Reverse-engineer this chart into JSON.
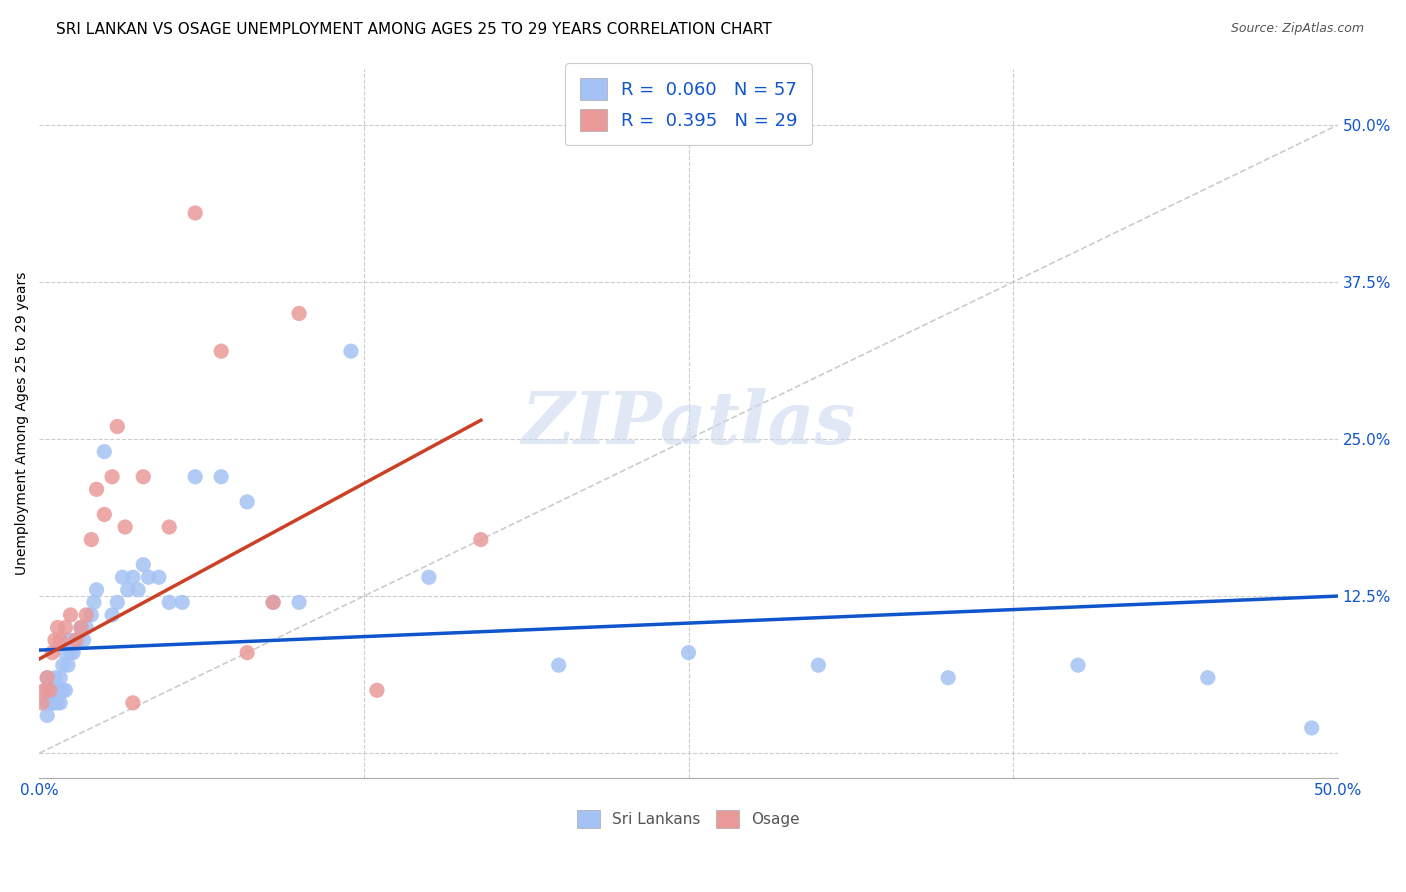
{
  "title": "SRI LANKAN VS OSAGE UNEMPLOYMENT AMONG AGES 25 TO 29 YEARS CORRELATION CHART",
  "source": "Source: ZipAtlas.com",
  "ylabel": "Unemployment Among Ages 25 to 29 years",
  "xlim": [
    0,
    0.5
  ],
  "ylim": [
    -0.02,
    0.545
  ],
  "sri_lankan_R": 0.06,
  "sri_lankan_N": 57,
  "osage_R": 0.395,
  "osage_N": 29,
  "sri_lankan_color": "#a4c2f4",
  "osage_color": "#ea9999",
  "sri_lankan_line_color": "#1155cc",
  "osage_line_color": "#cc4125",
  "ref_line_color": "#cccccc",
  "background_color": "#ffffff",
  "grid_color": "#cccccc",
  "title_fontsize": 11,
  "label_fontsize": 10,
  "tick_fontsize": 11,
  "legend_color": "#1155cc",
  "sri_lankan_x": [
    0.003,
    0.003,
    0.003,
    0.003,
    0.004,
    0.004,
    0.005,
    0.005,
    0.006,
    0.006,
    0.006,
    0.007,
    0.007,
    0.008,
    0.008,
    0.009,
    0.009,
    0.01,
    0.01,
    0.011,
    0.011,
    0.012,
    0.013,
    0.014,
    0.015,
    0.016,
    0.017,
    0.018,
    0.02,
    0.021,
    0.022,
    0.025,
    0.028,
    0.03,
    0.032,
    0.034,
    0.036,
    0.038,
    0.04,
    0.042,
    0.046,
    0.05,
    0.055,
    0.06,
    0.07,
    0.08,
    0.09,
    0.1,
    0.12,
    0.15,
    0.2,
    0.25,
    0.3,
    0.35,
    0.4,
    0.45,
    0.49
  ],
  "sri_lankan_y": [
    0.03,
    0.04,
    0.05,
    0.06,
    0.04,
    0.05,
    0.04,
    0.05,
    0.04,
    0.05,
    0.06,
    0.04,
    0.05,
    0.04,
    0.06,
    0.05,
    0.07,
    0.05,
    0.08,
    0.07,
    0.09,
    0.08,
    0.08,
    0.09,
    0.09,
    0.1,
    0.09,
    0.1,
    0.11,
    0.12,
    0.13,
    0.24,
    0.11,
    0.12,
    0.14,
    0.13,
    0.14,
    0.13,
    0.15,
    0.14,
    0.14,
    0.12,
    0.12,
    0.22,
    0.22,
    0.2,
    0.12,
    0.12,
    0.32,
    0.14,
    0.07,
    0.08,
    0.07,
    0.06,
    0.07,
    0.06,
    0.02
  ],
  "osage_x": [
    0.001,
    0.002,
    0.003,
    0.004,
    0.005,
    0.006,
    0.007,
    0.008,
    0.01,
    0.012,
    0.014,
    0.016,
    0.018,
    0.02,
    0.022,
    0.025,
    0.028,
    0.03,
    0.033,
    0.036,
    0.04,
    0.05,
    0.06,
    0.07,
    0.08,
    0.09,
    0.1,
    0.13,
    0.17
  ],
  "osage_y": [
    0.04,
    0.05,
    0.06,
    0.05,
    0.08,
    0.09,
    0.1,
    0.09,
    0.1,
    0.11,
    0.09,
    0.1,
    0.11,
    0.17,
    0.21,
    0.19,
    0.22,
    0.26,
    0.18,
    0.04,
    0.22,
    0.18,
    0.43,
    0.32,
    0.08,
    0.12,
    0.35,
    0.05,
    0.17
  ],
  "sl_line_x0": 0.0,
  "sl_line_x1": 0.5,
  "sl_line_y0": 0.082,
  "sl_line_y1": 0.125,
  "os_line_x0": 0.0,
  "os_line_x1": 0.17,
  "os_line_y0": 0.075,
  "os_line_y1": 0.265
}
